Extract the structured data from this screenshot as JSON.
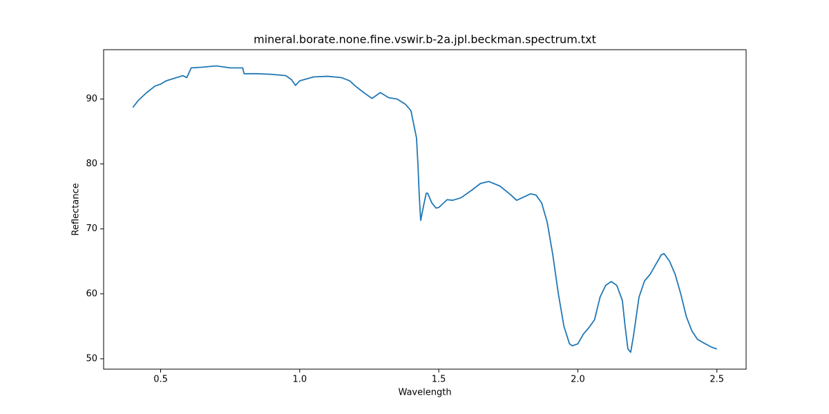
{
  "chart_data": {
    "type": "line",
    "title": "mineral.borate.none.fine.vswir.b-2a.jpl.beckman.spectrum.txt",
    "x_label": "Wavelength",
    "y_label": "Reflectance",
    "x": [
      0.4,
      0.42,
      0.45,
      0.48,
      0.5,
      0.52,
      0.55,
      0.58,
      0.594,
      0.61,
      0.65,
      0.7,
      0.75,
      0.795,
      0.8,
      0.85,
      0.9,
      0.95,
      0.97,
      0.985,
      1.0,
      1.05,
      1.1,
      1.15,
      1.18,
      1.2,
      1.23,
      1.26,
      1.29,
      1.32,
      1.35,
      1.38,
      1.4,
      1.42,
      1.425,
      1.43,
      1.435,
      1.445,
      1.455,
      1.46,
      1.475,
      1.49,
      1.5,
      1.53,
      1.55,
      1.58,
      1.62,
      1.65,
      1.68,
      1.72,
      1.76,
      1.78,
      1.8,
      1.83,
      1.85,
      1.87,
      1.89,
      1.91,
      1.93,
      1.95,
      1.97,
      1.98,
      2.0,
      2.02,
      2.04,
      2.06,
      2.08,
      2.1,
      2.12,
      2.14,
      2.16,
      2.17,
      2.18,
      2.19,
      2.2,
      2.22,
      2.24,
      2.26,
      2.28,
      2.3,
      2.31,
      2.33,
      2.35,
      2.37,
      2.39,
      2.41,
      2.43,
      2.45,
      2.48,
      2.5
    ],
    "series": [
      {
        "name": "spectrum",
        "color": "#1f77b4",
        "values": [
          88.7,
          89.8,
          91.0,
          92.0,
          92.3,
          92.8,
          93.2,
          93.6,
          93.3,
          94.8,
          94.9,
          95.1,
          94.8,
          94.8,
          93.9,
          93.9,
          93.8,
          93.6,
          93.0,
          92.1,
          92.8,
          93.4,
          93.5,
          93.3,
          92.8,
          92.0,
          91.0,
          90.1,
          91.0,
          90.2,
          90.0,
          89.2,
          88.2,
          84.0,
          80.0,
          75.0,
          71.3,
          73.5,
          75.5,
          75.5,
          74.0,
          73.2,
          73.3,
          74.5,
          74.4,
          74.8,
          76.0,
          77.0,
          77.3,
          76.6,
          75.2,
          74.4,
          74.8,
          75.4,
          75.2,
          74.0,
          71.0,
          66.0,
          60.0,
          55.0,
          52.3,
          52.0,
          52.3,
          53.8,
          54.8,
          56.0,
          59.5,
          61.3,
          61.9,
          61.3,
          59.0,
          55.0,
          51.5,
          51.0,
          53.5,
          59.5,
          62.0,
          63.0,
          64.5,
          66.0,
          66.2,
          65.0,
          63.0,
          60.0,
          56.5,
          54.3,
          53.0,
          52.5,
          51.8,
          51.5
        ]
      }
    ],
    "xlim": [
      0.295,
      2.605
    ],
    "ylim": [
      48.4,
      97.6
    ],
    "xticks": [
      0.5,
      {
        "value": 1,
        "label": "1.0"
      },
      1.5,
      {
        "value": 2,
        "label": "2.0"
      },
      2.5
    ],
    "yticks": [
      50,
      60,
      70,
      80,
      90
    ],
    "grid": false
  }
}
